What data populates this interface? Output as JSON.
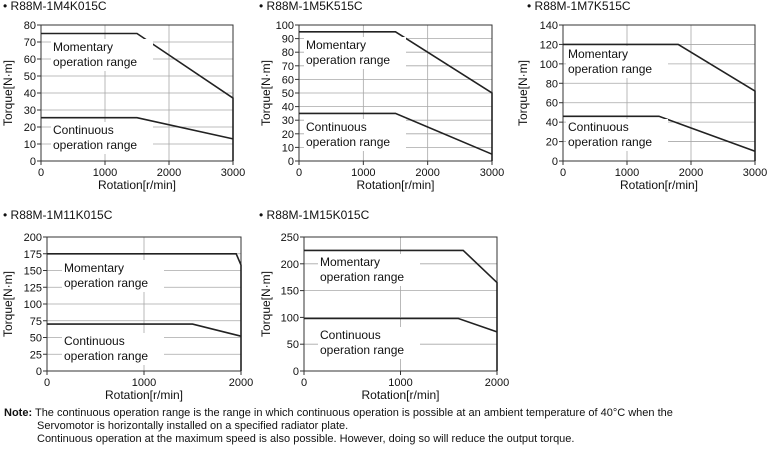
{
  "chart_data": [
    {
      "type": "line",
      "title": "R88M-1M4K015C",
      "xlabel": "Rotation[r/min]",
      "ylabel": "Torque[N·m]",
      "xlim": [
        0,
        3000
      ],
      "ylim": [
        0,
        80
      ],
      "xticks": [
        0,
        1000,
        2000,
        3000
      ],
      "yticks": [
        0,
        10,
        20,
        30,
        40,
        50,
        60,
        70,
        80
      ],
      "grid": true,
      "series": [
        {
          "name": "Momentary operation range",
          "x": [
            0,
            1500,
            3000,
            3000
          ],
          "y": [
            75,
            75,
            37,
            0
          ]
        },
        {
          "name": "Continuous operation range",
          "x": [
            0,
            1500,
            3000
          ],
          "y": [
            25.5,
            25.5,
            13
          ]
        }
      ]
    },
    {
      "type": "line",
      "title": "R88M-1M5K515C",
      "xlabel": "Rotation[r/min]",
      "ylabel": "Torque[N·m]",
      "xlim": [
        0,
        3000
      ],
      "ylim": [
        0,
        100
      ],
      "xticks": [
        0,
        1000,
        2000,
        3000
      ],
      "yticks": [
        0,
        10,
        20,
        30,
        40,
        50,
        60,
        70,
        80,
        90,
        100
      ],
      "grid": true,
      "series": [
        {
          "name": "Momentary operation range",
          "x": [
            0,
            1500,
            3000,
            3000
          ],
          "y": [
            95,
            95,
            50,
            0
          ]
        },
        {
          "name": "Continuous operation range",
          "x": [
            0,
            1500,
            3000
          ],
          "y": [
            35,
            35,
            5
          ]
        }
      ]
    },
    {
      "type": "line",
      "title": "R88M-1M7K515C",
      "xlabel": "Rotation[r/min]",
      "ylabel": "Torque[N·m]",
      "xlim": [
        0,
        3000
      ],
      "ylim": [
        0,
        140
      ],
      "xticks": [
        0,
        1000,
        2000,
        3000
      ],
      "yticks": [
        0,
        20,
        40,
        60,
        80,
        100,
        120,
        140
      ],
      "grid": true,
      "series": [
        {
          "name": "Momentary operation range",
          "x": [
            0,
            1800,
            3000,
            3000
          ],
          "y": [
            120,
            120,
            72,
            0
          ]
        },
        {
          "name": "Continuous operation range",
          "x": [
            0,
            1500,
            3000
          ],
          "y": [
            46,
            46,
            10
          ]
        }
      ]
    },
    {
      "type": "line",
      "title": "R88M-1M11K015C",
      "xlabel": "Rotation[r/min]",
      "ylabel": "Torque[N·m]",
      "xlim": [
        0,
        2000
      ],
      "ylim": [
        0,
        200
      ],
      "xticks": [
        0,
        1000,
        2000
      ],
      "yticks": [
        0,
        25,
        50,
        75,
        100,
        125,
        150,
        175,
        200
      ],
      "grid": true,
      "series": [
        {
          "name": "Momentary operation range",
          "x": [
            0,
            1950,
            2000,
            2000
          ],
          "y": [
            175,
            175,
            158,
            0
          ]
        },
        {
          "name": "Continuous operation range",
          "x": [
            0,
            1500,
            2000
          ],
          "y": [
            70,
            70,
            52
          ]
        }
      ]
    },
    {
      "type": "line",
      "title": "R88M-1M15K015C",
      "xlabel": "Rotation[r/min]",
      "ylabel": "Torque[N·m]",
      "xlim": [
        0,
        2000
      ],
      "ylim": [
        0,
        250
      ],
      "xticks": [
        0,
        1000,
        2000
      ],
      "yticks": [
        0,
        50,
        100,
        150,
        200,
        250
      ],
      "grid": true,
      "series": [
        {
          "name": "Momentary operation range",
          "x": [
            0,
            1650,
            2000,
            2000
          ],
          "y": [
            225,
            225,
            165,
            0
          ]
        },
        {
          "name": "Continuous operation range",
          "x": [
            0,
            1600,
            2000
          ],
          "y": [
            98,
            98,
            73
          ]
        }
      ]
    }
  ],
  "note": {
    "label": "Note:",
    "line1": "The continuous operation range is the range in which continuous operation is possible at an ambient temperature of 40°C when the",
    "line2": "Servomotor is horizontally installed on a specified radiator plate.",
    "line3": "Continuous operation at the maximum speed is also possible. However, doing so will reduce the output torque."
  }
}
